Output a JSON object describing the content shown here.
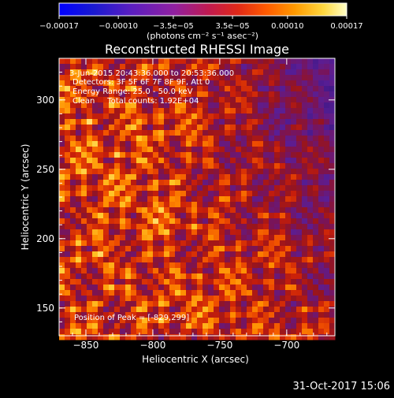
{
  "chart_data": {
    "type": "heatmap",
    "title": "Reconstructed RHESSI Image",
    "xlabel": "Heliocentric X (arcsec)",
    "ylabel": "Heliocentric Y (arcsec)",
    "xlim": [
      -870,
      -664
    ],
    "ylim": [
      130,
      330
    ],
    "x_ticks": [
      -850,
      -800,
      -750,
      -700
    ],
    "x_tick_labels": [
      "−850",
      "−800",
      "−750",
      "−700"
    ],
    "y_ticks": [
      150,
      200,
      250,
      300
    ],
    "y_tick_labels": [
      "150",
      "200",
      "250",
      "300"
    ],
    "colorbar": {
      "ticks": [
        -0.00017,
        -0.0001,
        -3.5e-05,
        3.5e-05,
        0.0001,
        0.00017
      ],
      "tick_labels": [
        "−0.00017",
        "−0.00010",
        "−3.5e−05",
        "3.5e−05",
        "0.00010",
        "0.00017"
      ],
      "range": [
        -0.00017,
        0.00017
      ],
      "unit_label": "(photons cm⁻² s⁻¹ asec⁻²)"
    },
    "annotations": [
      "3-Jun-2015 20:43:36.000 to 20:53:36.000",
      "Detectors: 3F 5F 6F 7F 8F 9F, Att 0",
      "Energy Range: 25.0 - 50.0 keV",
      "Clean     Total counts: 1.92E+04"
    ],
    "peak_label": "Position of Peak = [-829,299]",
    "peak_position": [
      -829,
      299
    ]
  },
  "footer": {
    "date_stamp": "31-Oct-2017 15:06"
  }
}
